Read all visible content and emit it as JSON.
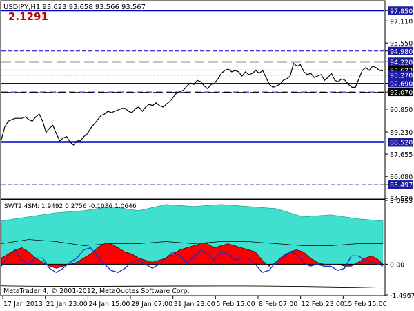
{
  "window": {
    "symbol_line": "USDJPY,H1  93.623 93.658 93.566 93.567",
    "big_value": "2.1291",
    "big_value_color": "#c00000",
    "copyright": "MetaTrader 4, © 2001-2012, MetaQuotes Software Corp."
  },
  "main_axis": {
    "ticks": [
      "97.850",
      "97.110",
      "95.550",
      "94.980",
      "94.220",
      "93.623",
      "93.270",
      "92.690",
      "92.070",
      "90.850",
      "89.230",
      "88.520",
      "87.655",
      "86.080",
      "85.497",
      "84.520"
    ]
  },
  "indicator": {
    "label": "SWT2.4SM:  1.9492 0.2756 -0.1086 1.0646",
    "axis_ticks": [
      "3.0953",
      "0.00",
      "-1.4967"
    ]
  },
  "time_axis": {
    "labels": [
      "17 Jan 2013",
      "21 Jan 23:00",
      "24 Jan 15:00",
      "29 Jan 07:00",
      "31 Jan 23:00",
      "5 Feb 15:00",
      "8 Feb 07:00",
      "12 Feb 23:00",
      "15 Feb 15:00"
    ]
  },
  "colors": {
    "level_blue": "#0000cc",
    "price_line": "#000000",
    "band_cyan": "#40e0d0",
    "histogram_red": "#ff0000",
    "signal_blue": "#1030d0",
    "axis_badge": "#1c1c9c",
    "price_badge": "#000000"
  },
  "chart_data": [
    {
      "type": "line",
      "series": [
        {
          "name": "USDJPY,H1",
          "x": [
            0,
            5,
            10,
            15,
            20,
            25,
            30,
            35,
            40,
            45,
            50,
            55,
            60,
            65,
            70,
            75,
            80,
            85,
            90,
            95,
            100,
            105,
            110,
            115,
            120,
            125,
            130,
            135,
            140,
            145,
            150,
            155,
            160,
            165,
            170,
            175,
            180,
            185,
            190,
            195,
            200,
            205,
            210,
            215,
            220,
            225,
            230,
            235,
            240,
            245,
            250,
            255,
            260,
            265,
            270,
            275,
            280,
            285,
            290,
            295,
            300,
            305,
            310,
            315,
            320,
            325,
            330,
            335,
            340,
            345,
            350,
            355,
            360,
            365,
            370,
            375,
            380,
            385,
            390,
            395,
            400,
            405,
            410,
            415,
            420,
            425,
            430,
            435,
            440,
            445,
            450,
            455,
            460,
            465,
            470,
            475,
            480,
            485,
            490,
            495,
            500,
            505,
            510,
            515,
            520,
            525,
            530,
            535,
            540,
            545,
            550,
            555
          ],
          "values": [
            88.7,
            89.6,
            90.0,
            90.1,
            90.2,
            90.2,
            90.2,
            90.3,
            90.1,
            90.0,
            90.3,
            90.5,
            90.0,
            89.2,
            89.5,
            89.7,
            89.1,
            88.6,
            88.8,
            88.9,
            88.5,
            88.3,
            88.6,
            88.6,
            88.9,
            89.1,
            89.5,
            89.8,
            90.1,
            90.4,
            90.5,
            90.7,
            90.6,
            90.7,
            90.8,
            90.9,
            90.9,
            90.7,
            90.6,
            90.9,
            91.0,
            90.7,
            91.0,
            91.2,
            91.1,
            91.3,
            91.1,
            91.0,
            91.2,
            91.4,
            91.7,
            92.0,
            92.1,
            92.2,
            92.5,
            92.7,
            92.6,
            92.9,
            92.8,
            92.5,
            92.3,
            92.6,
            92.7,
            93.0,
            93.4,
            93.6,
            93.7,
            93.5,
            93.6,
            93.5,
            93.2,
            93.5,
            93.3,
            93.4,
            93.6,
            93.4,
            93.6,
            93.1,
            92.6,
            92.4,
            92.5,
            92.6,
            92.9,
            93.0,
            93.2,
            94.1,
            93.9,
            94.0,
            93.5,
            93.3,
            93.4,
            93.1,
            93.2,
            93.3,
            92.9,
            93.1,
            93.4,
            92.9,
            92.8,
            93.0,
            92.9,
            92.6,
            92.4,
            92.4,
            93.0,
            93.6,
            93.8,
            93.6,
            93.9,
            93.8,
            93.6,
            93.57
          ]
        }
      ],
      "ylim": [
        84.52,
        98.5
      ],
      "levels": [
        97.85,
        94.98,
        94.22,
        93.27,
        92.69,
        92.07,
        88.52,
        85.497
      ]
    },
    {
      "type": "area",
      "series": [
        {
          "name": "band",
          "x": [
            0,
            40,
            80,
            120,
            160,
            200,
            240,
            280,
            320,
            360,
            400,
            440,
            480,
            520,
            556
          ],
          "upper": [
            2.1,
            2.3,
            2.5,
            2.6,
            2.8,
            2.6,
            2.9,
            2.8,
            2.9,
            2.8,
            2.7,
            2.3,
            2.4,
            2.2,
            2.1
          ],
          "lower": [
            1.0,
            1.2,
            1.1,
            0.9,
            1.0,
            1.0,
            1.1,
            1.0,
            1.1,
            1.1,
            1.0,
            0.9,
            0.9,
            1.0,
            1.0
          ]
        },
        {
          "name": "histogram",
          "x": [
            0,
            10,
            20,
            30,
            40,
            50,
            60,
            70,
            80,
            90,
            100,
            110,
            120,
            130,
            140,
            150,
            160,
            170,
            180,
            190,
            200,
            210,
            220,
            230,
            240,
            250,
            260,
            270,
            280,
            290,
            300,
            310,
            320,
            330,
            340,
            350,
            360,
            370,
            380,
            390,
            400,
            410,
            420,
            430,
            440,
            450,
            460,
            470,
            480,
            490,
            500,
            510,
            520,
            530,
            540,
            550,
            556
          ],
          "values": [
            0.3,
            0.5,
            0.7,
            0.8,
            0.6,
            0.3,
            0.1,
            -0.1,
            -0.2,
            -0.1,
            0.0,
            0.1,
            0.3,
            0.5,
            0.8,
            1.0,
            1.0,
            0.8,
            0.6,
            0.5,
            0.3,
            0.2,
            0.1,
            0.2,
            0.3,
            0.5,
            0.7,
            0.8,
            0.9,
            1.0,
            1.0,
            0.8,
            0.9,
            1.0,
            0.9,
            0.8,
            0.7,
            0.6,
            0.2,
            -0.1,
            0.1,
            0.4,
            0.6,
            0.7,
            0.6,
            0.3,
            0.1,
            0.0,
            0.0,
            0.0,
            -0.1,
            -0.1,
            0.1,
            0.3,
            0.4,
            0.2,
            0.0
          ]
        },
        {
          "name": "signal",
          "x": [
            0,
            10,
            20,
            30,
            40,
            50,
            60,
            70,
            80,
            90,
            100,
            110,
            120,
            130,
            140,
            150,
            160,
            170,
            180,
            190,
            200,
            210,
            220,
            230,
            240,
            250,
            260,
            270,
            280,
            290,
            300,
            310,
            320,
            330,
            340,
            350,
            360,
            370,
            380,
            390,
            400,
            410,
            420,
            430,
            440,
            450,
            460,
            470,
            480,
            490,
            500,
            510,
            520,
            530,
            540,
            550,
            556
          ],
          "values": [
            -0.1,
            0.4,
            0.7,
            0.2,
            0.0,
            0.3,
            0.3,
            -0.2,
            -0.4,
            -0.2,
            0.1,
            0.3,
            0.7,
            0.8,
            0.4,
            0.0,
            -0.3,
            -0.4,
            -0.2,
            0.1,
            0.2,
            0.0,
            -0.2,
            0.0,
            0.3,
            0.6,
            0.4,
            0.1,
            0.3,
            0.7,
            0.5,
            0.2,
            0.6,
            0.5,
            0.2,
            0.3,
            0.3,
            0.0,
            -0.4,
            -0.3,
            0.1,
            0.3,
            0.6,
            0.5,
            0.1,
            -0.1,
            0.0,
            -0.1,
            -0.1,
            -0.3,
            -0.2,
            0.4,
            0.4,
            0.2,
            0.1,
            0.0,
            -0.1
          ]
        }
      ],
      "ylim": [
        -1.4967,
        3.0953
      ]
    }
  ]
}
